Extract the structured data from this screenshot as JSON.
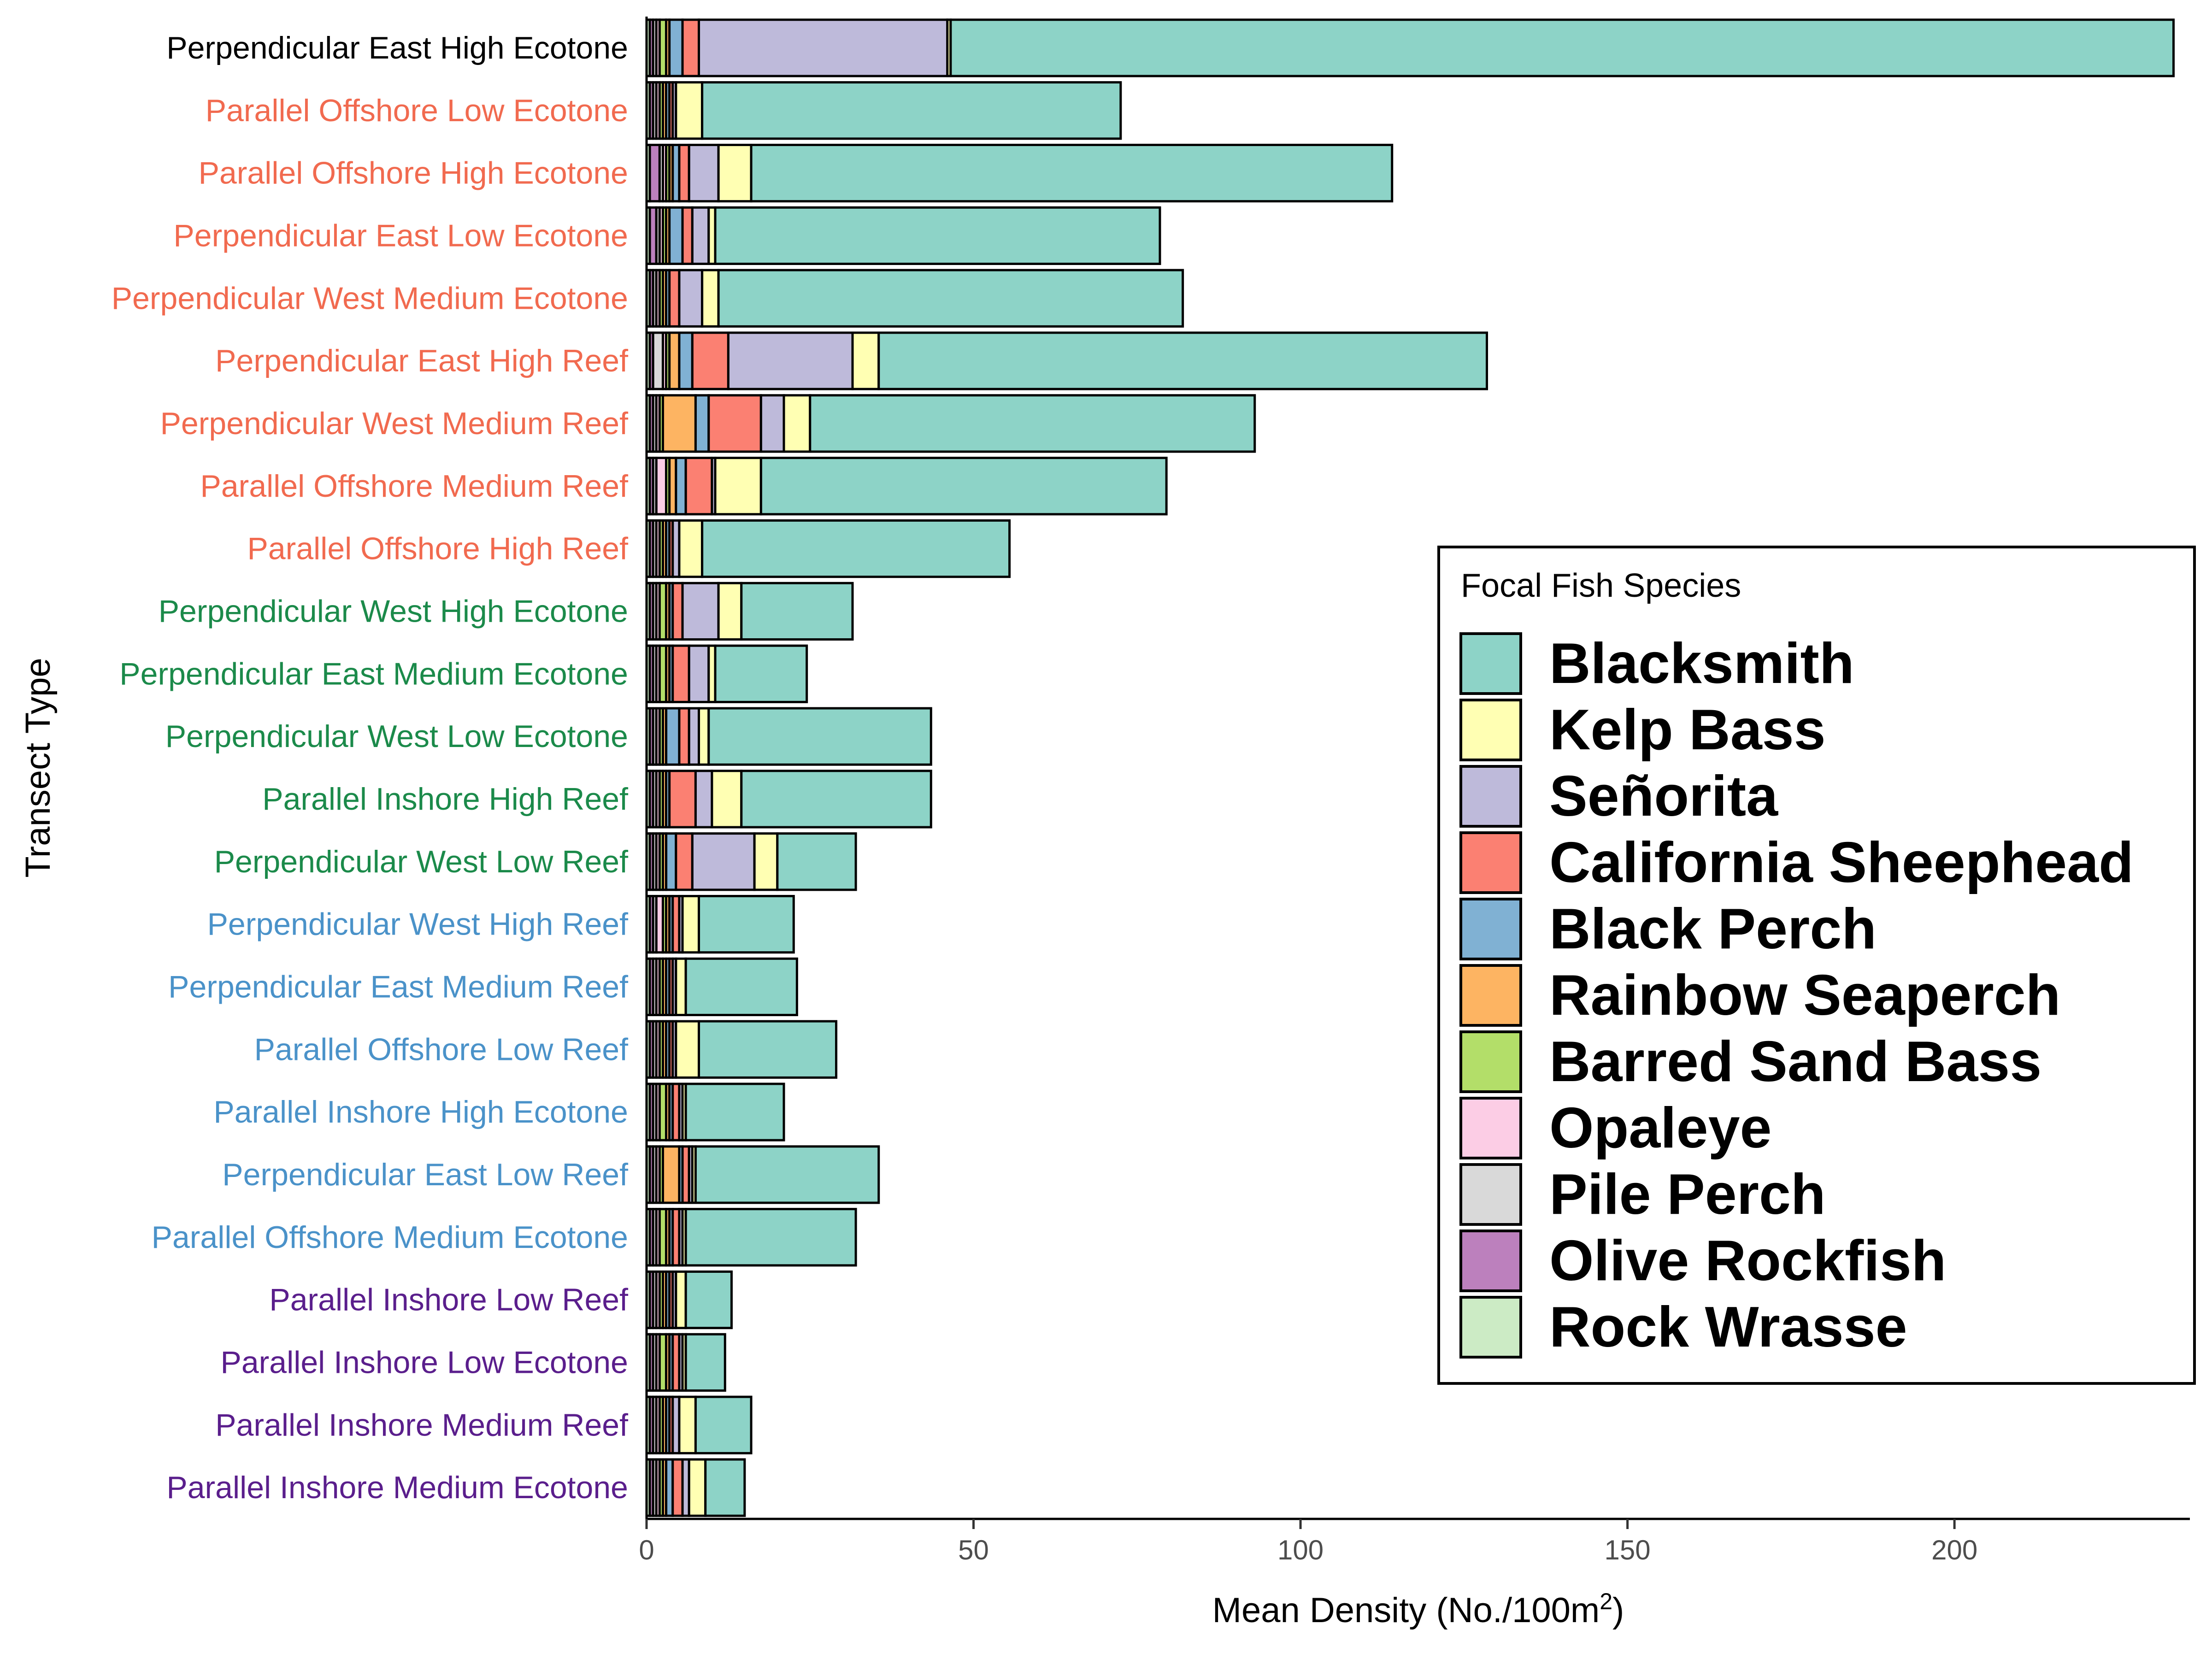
{
  "chart_data": {
    "type": "bar",
    "orientation": "horizontal",
    "stacked": true,
    "xlabel": "Mean Density (No./100m",
    "xlabel_superscript": "2",
    "xlabel_suffix": ")",
    "ylabel": "Transect Type",
    "xlim": [
      0,
      236
    ],
    "xticks": [
      0,
      50,
      100,
      150,
      200
    ],
    "xtick_labels": [
      "0",
      "50",
      "100",
      "150",
      "200"
    ],
    "grid": false,
    "legend_position": "right",
    "legend_title": "Focal Fish Species",
    "categories": [
      "Perpendicular East High Ecotone",
      "Parallel Offshore Low Ecotone",
      "Parallel Offshore High Ecotone",
      "Perpendicular East Low Ecotone",
      "Perpendicular West Medium Ecotone",
      "Perpendicular East High Reef",
      "Perpendicular West Medium Reef",
      "Parallel Offshore Medium Reef",
      "Parallel Offshore High Reef",
      "Perpendicular West High Ecotone",
      "Perpendicular East Medium Ecotone",
      "Perpendicular West Low Ecotone",
      "Parallel Inshore High Reef",
      "Perpendicular West Low Reef",
      "Perpendicular West High Reef",
      "Perpendicular East Medium Reef",
      "Parallel Offshore Low Reef",
      "Parallel Inshore High Ecotone",
      "Perpendicular East Low Reef",
      "Parallel Offshore Medium Ecotone",
      "Parallel Inshore Low Reef",
      "Parallel Inshore Low Ecotone",
      "Parallel Inshore Medium Reef",
      "Parallel Inshore Medium Ecotone"
    ],
    "category_label_colors": [
      "#000000",
      "#f16a4f",
      "#f16a4f",
      "#f16a4f",
      "#f16a4f",
      "#f16a4f",
      "#f16a4f",
      "#f16a4f",
      "#f16a4f",
      "#1b8a4a",
      "#1b8a4a",
      "#1b8a4a",
      "#1b8a4a",
      "#1b8a4a",
      "#4a92c9",
      "#4a92c9",
      "#4a92c9",
      "#4a92c9",
      "#4a92c9",
      "#4a92c9",
      "#5a1e8c",
      "#5a1e8c",
      "#5a1e8c",
      "#5a1e8c"
    ],
    "stack_order": [
      "Rock Wrasse",
      "Olive Rockfish",
      "Pile Perch",
      "Opaleye",
      "Barred Sand Bass",
      "Rainbow Seaperch",
      "Black Perch",
      "California Sheephead",
      "Señorita",
      "Kelp Bass",
      "Blacksmith"
    ],
    "series": [
      {
        "name": "Blacksmith",
        "color": "#8dd3c7",
        "values": [
          187,
          64,
          98,
          68,
          71,
          93,
          68,
          62,
          47,
          17,
          14,
          34,
          29,
          12,
          14.5,
          17,
          21,
          15,
          28,
          26,
          7,
          6,
          8.5,
          6
        ]
      },
      {
        "name": "Kelp Bass",
        "color": "#ffffb3",
        "values": [
          0.5,
          4,
          5,
          1,
          2.5,
          4,
          4,
          7,
          3.5,
          3.5,
          1,
          1.5,
          4.5,
          3.5,
          2.5,
          1.5,
          3.5,
          0.5,
          0.5,
          0.5,
          1.5,
          0.5,
          2.5,
          2.5
        ]
      },
      {
        "name": "Señorita",
        "color": "#bebada",
        "values": [
          38,
          0.5,
          4.5,
          2.5,
          3.5,
          19,
          3.5,
          0.5,
          1,
          5.5,
          3,
          1.5,
          2.5,
          9.5,
          0.5,
          0.5,
          0.5,
          0.5,
          0.5,
          0.5,
          0.5,
          0.5,
          1,
          1
        ]
      },
      {
        "name": "California Sheephead",
        "color": "#fb8072",
        "values": [
          2.5,
          0.5,
          1.5,
          1.5,
          1.5,
          5.5,
          8,
          4,
          0.5,
          1.5,
          2.5,
          1.5,
          4,
          2.5,
          1,
          0.5,
          0.5,
          1,
          1,
          1,
          0.5,
          1,
          0.5,
          1.5
        ]
      },
      {
        "name": "Black Perch",
        "color": "#80b1d3",
        "values": [
          2,
          0.5,
          1,
          2,
          0.5,
          2,
          2,
          1.5,
          0.5,
          0.5,
          0.5,
          2,
          0.5,
          1.5,
          0.5,
          0.5,
          0.5,
          0.5,
          0.5,
          0.5,
          0.5,
          0.5,
          0.5,
          1
        ]
      },
      {
        "name": "Rainbow Seaperch",
        "color": "#fdb462",
        "values": [
          0.5,
          0.5,
          0.5,
          0.5,
          0.5,
          1.5,
          5,
          1,
          0.5,
          0.5,
          0.5,
          0.5,
          0.5,
          0.5,
          0.5,
          0.5,
          0.5,
          0.5,
          2.5,
          0.5,
          0.5,
          0.5,
          0.5,
          0.5
        ]
      },
      {
        "name": "Barred Sand Bass",
        "color": "#b3de69",
        "values": [
          1,
          0.5,
          0.5,
          0.5,
          0.5,
          0.5,
          0.5,
          0.5,
          0.5,
          1,
          1,
          0.5,
          0.5,
          0.5,
          0.5,
          0.5,
          0.5,
          1,
          0.5,
          1,
          0.5,
          1,
          0.5,
          0.5
        ]
      },
      {
        "name": "Opaleye",
        "color": "#fccde5",
        "values": [
          0.5,
          0.5,
          0.5,
          0.5,
          0.5,
          0.5,
          0.5,
          1.5,
          0.5,
          0.5,
          0.5,
          0.5,
          0.5,
          0.5,
          1,
          0.5,
          0.5,
          0.5,
          0.5,
          0.5,
          0.5,
          0.5,
          0.5,
          0.5
        ]
      },
      {
        "name": "Pile Perch",
        "color": "#d9d9d9",
        "values": [
          0.5,
          0.5,
          0.5,
          0.5,
          0.5,
          1.5,
          0.5,
          0.5,
          0.5,
          0.5,
          0.5,
          0.5,
          0.5,
          0.5,
          0.5,
          0.5,
          0.5,
          0.5,
          0.5,
          0.5,
          0.5,
          0.5,
          0.5,
          0.5
        ]
      },
      {
        "name": "Olive Rockfish",
        "color": "#bc80bd",
        "values": [
          0.5,
          0.5,
          1.5,
          1,
          0.5,
          0.5,
          0.5,
          0.5,
          0.5,
          0.5,
          0.5,
          0.5,
          0.5,
          0.5,
          0.5,
          0.5,
          0.5,
          0.5,
          0.5,
          0.5,
          0.5,
          0.5,
          0.5,
          0.5
        ]
      },
      {
        "name": "Rock Wrasse",
        "color": "#ccebc5",
        "values": [
          0.5,
          0.5,
          0.5,
          0.5,
          0.5,
          0.5,
          0.5,
          0.5,
          0.5,
          0.5,
          0.5,
          0.5,
          0.5,
          0.5,
          0.5,
          0.5,
          0.5,
          0.5,
          0.5,
          0.5,
          0.5,
          0.5,
          0.5,
          0.5
        ]
      }
    ]
  }
}
